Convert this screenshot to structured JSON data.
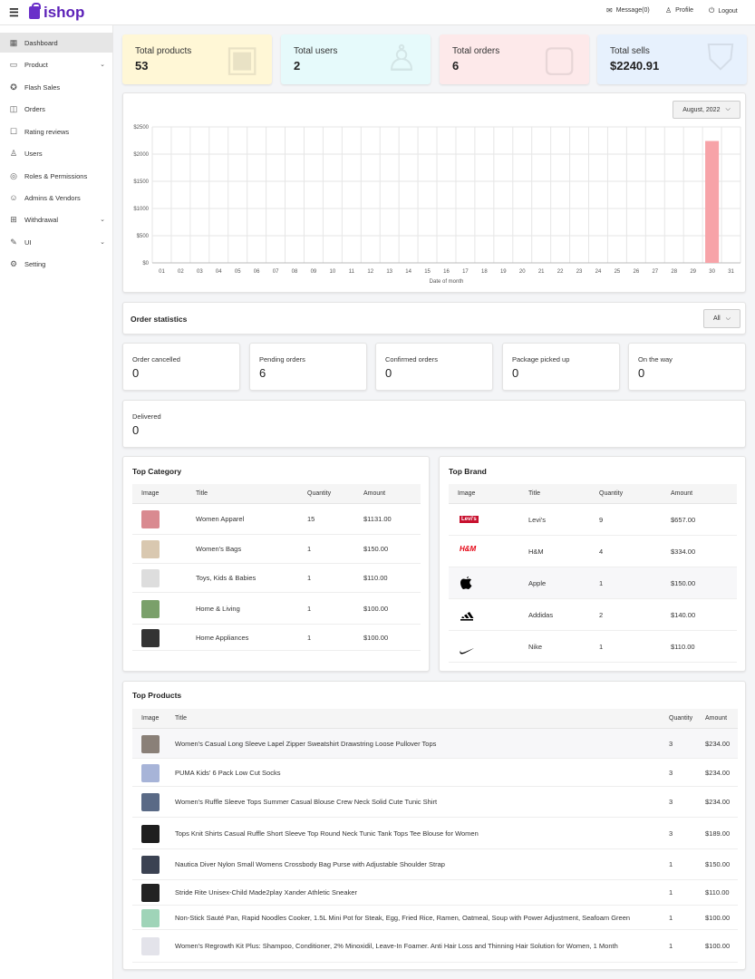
{
  "header": {
    "brand": "ishop",
    "message_label": "Message(0)",
    "profile_label": "Profile",
    "logout_label": "Logout"
  },
  "sidebar": {
    "items": [
      {
        "label": "Dashboard",
        "icon": "dashboard-icon",
        "glyph": "▦",
        "active": true,
        "chevron": false
      },
      {
        "label": "Product",
        "icon": "product-icon",
        "glyph": "▭",
        "active": false,
        "chevron": true
      },
      {
        "label": "Flash Sales",
        "icon": "flash-sales-icon",
        "glyph": "✪",
        "active": false,
        "chevron": false
      },
      {
        "label": "Orders",
        "icon": "orders-icon",
        "glyph": "◫",
        "active": false,
        "chevron": false
      },
      {
        "label": "Rating reviews",
        "icon": "rating-icon",
        "glyph": "☐",
        "active": false,
        "chevron": false
      },
      {
        "label": "Users",
        "icon": "user-icon",
        "glyph": "♙",
        "active": false,
        "chevron": false
      },
      {
        "label": "Roles & Permissions",
        "icon": "roles-icon",
        "glyph": "◎",
        "active": false,
        "chevron": false
      },
      {
        "label": "Admins & Vendors",
        "icon": "admins-icon",
        "glyph": "☺",
        "active": false,
        "chevron": false
      },
      {
        "label": "Withdrawal",
        "icon": "withdrawal-icon",
        "glyph": "⊞",
        "active": false,
        "chevron": true
      },
      {
        "label": "UI",
        "icon": "ui-icon",
        "glyph": "✎",
        "active": false,
        "chevron": true
      },
      {
        "label": "Setting",
        "icon": "setting-icon",
        "glyph": "⚙",
        "active": false,
        "chevron": false
      }
    ]
  },
  "stats": [
    {
      "label": "Total products",
      "value": "53",
      "color": "#fff7d6",
      "icon": "box-icon",
      "glyph": "▣"
    },
    {
      "label": "Total users",
      "value": "2",
      "color": "#e6fafb",
      "icon": "user-icon",
      "glyph": "♙"
    },
    {
      "label": "Total orders",
      "value": "6",
      "color": "#fde9ea",
      "icon": "bag-icon",
      "glyph": "▢"
    },
    {
      "label": "Total sells",
      "value": "$2240.91",
      "color": "#e7f1fd",
      "icon": "shirt-icon",
      "glyph": "⛉"
    }
  ],
  "sales_chart": {
    "month_select": "August, 2022"
  },
  "chart_data": {
    "type": "bar",
    "categories": [
      "01",
      "02",
      "03",
      "04",
      "05",
      "06",
      "07",
      "08",
      "09",
      "10",
      "11",
      "12",
      "13",
      "14",
      "15",
      "16",
      "17",
      "18",
      "19",
      "20",
      "21",
      "22",
      "23",
      "24",
      "25",
      "26",
      "27",
      "28",
      "29",
      "30",
      "31"
    ],
    "values": [
      0,
      0,
      0,
      0,
      0,
      0,
      0,
      0,
      0,
      0,
      0,
      0,
      0,
      0,
      0,
      0,
      0,
      0,
      0,
      0,
      0,
      0,
      0,
      0,
      0,
      0,
      0,
      0,
      0,
      2240.91,
      0
    ],
    "xlabel": "Date of month",
    "ylabel": "",
    "ylim": [
      0,
      2500
    ],
    "yticks": [
      "$0",
      "$500",
      "$1000",
      "$1500",
      "$2000",
      "$2500"
    ],
    "grid": true,
    "bar_color": "#f7a3a8"
  },
  "order_stats": {
    "title": "Order statistics",
    "filter": "All",
    "items": [
      {
        "label": "Order cancelled",
        "value": "0"
      },
      {
        "label": "Pending orders",
        "value": "6"
      },
      {
        "label": "Confirmed orders",
        "value": "0"
      },
      {
        "label": "Package picked up",
        "value": "0"
      },
      {
        "label": "On the way",
        "value": "0"
      },
      {
        "label": "Delivered",
        "value": "0"
      }
    ]
  },
  "top_category": {
    "title": "Top Category",
    "columns": [
      "Image",
      "Title",
      "Quantity",
      "Amount"
    ],
    "rows": [
      {
        "title": "Women Apparel",
        "qty": "15",
        "amount": "$1131.00",
        "thumb": "women-apparel-thumb",
        "color": "#d98a90"
      },
      {
        "title": "Women's Bags",
        "qty": "1",
        "amount": "$150.00",
        "thumb": "womens-bags-thumb",
        "color": "#d9c8b0"
      },
      {
        "title": "Toys, Kids & Babies",
        "qty": "1",
        "amount": "$110.00",
        "thumb": "toys-thumb",
        "color": "#dddddd"
      },
      {
        "title": "Home & Living",
        "qty": "1",
        "amount": "$100.00",
        "thumb": "home-living-thumb",
        "color": "#7aa06a"
      },
      {
        "title": "Home Appliances",
        "qty": "1",
        "amount": "$100.00",
        "thumb": "home-appliances-thumb",
        "color": "#333333"
      }
    ]
  },
  "top_brand": {
    "title": "Top Brand",
    "columns": [
      "Image",
      "Title",
      "Quantity",
      "Amount"
    ],
    "rows": [
      {
        "title": "Levi's",
        "qty": "9",
        "amount": "$657.00",
        "logo": "levis-logo",
        "mark": "Levi's",
        "color": "#c8102e"
      },
      {
        "title": "H&M",
        "qty": "4",
        "amount": "$334.00",
        "logo": "hm-logo",
        "mark": "H&M",
        "color": "#e50010"
      },
      {
        "title": "Apple",
        "qty": "1",
        "amount": "$150.00",
        "logo": "apple-logo",
        "mark": "",
        "color": "#000000"
      },
      {
        "title": "Addidas",
        "qty": "2",
        "amount": "$140.00",
        "logo": "adidas-logo",
        "mark": "",
        "color": "#000000"
      },
      {
        "title": "Nike",
        "qty": "1",
        "amount": "$110.00",
        "logo": "nike-logo",
        "mark": "",
        "color": "#000000"
      }
    ]
  },
  "top_products": {
    "title": "Top Products",
    "columns": [
      "Image",
      "Title",
      "Quantity",
      "Amount"
    ],
    "rows": [
      {
        "title": "Women's Casual Long Sleeve Lapel Zipper Sweatshirt Drawstring Loose Pullover Tops",
        "qty": "3",
        "amount": "$234.00",
        "color": "#8a8078"
      },
      {
        "title": "PUMA Kids' 6 Pack Low Cut Socks",
        "qty": "3",
        "amount": "$234.00",
        "color": "#a7b4d8"
      },
      {
        "title": "Women's Ruffle Sleeve Tops Summer Casual Blouse Crew Neck Solid Cute Tunic Shirt",
        "qty": "3",
        "amount": "$234.00",
        "color": "#5a6a86"
      },
      {
        "title": "Tops Knit Shirts Casual Ruffle Short Sleeve Top Round Neck Tunic Tank Tops Tee Blouse for Women",
        "qty": "3",
        "amount": "$189.00",
        "color": "#1e1e1e"
      },
      {
        "title": "Nautica Diver Nylon Small Womens Crossbody Bag Purse with Adjustable Shoulder Strap",
        "qty": "1",
        "amount": "$150.00",
        "color": "#3b4252"
      },
      {
        "title": "Stride Rite Unisex-Child Made2play Xander Athletic Sneaker",
        "qty": "1",
        "amount": "$110.00",
        "color": "#222222"
      },
      {
        "title": "Non-Stick Sauté Pan, Rapid Noodles Cooker, 1.5L Mini Pot for Steak, Egg, Fried Rice, Ramen, Oatmeal, Soup with Power Adjustment, Seafoam Green",
        "qty": "1",
        "amount": "$100.00",
        "color": "#9fd4b8"
      },
      {
        "title": "Women's Regrowth Kit Plus: Shampoo, Conditioner, 2% Minoxidil, Leave-In Foamer. Anti Hair Loss and Thinning Hair Solution for Women, 1 Month",
        "qty": "1",
        "amount": "$100.00",
        "color": "#e3e3ea"
      }
    ]
  }
}
